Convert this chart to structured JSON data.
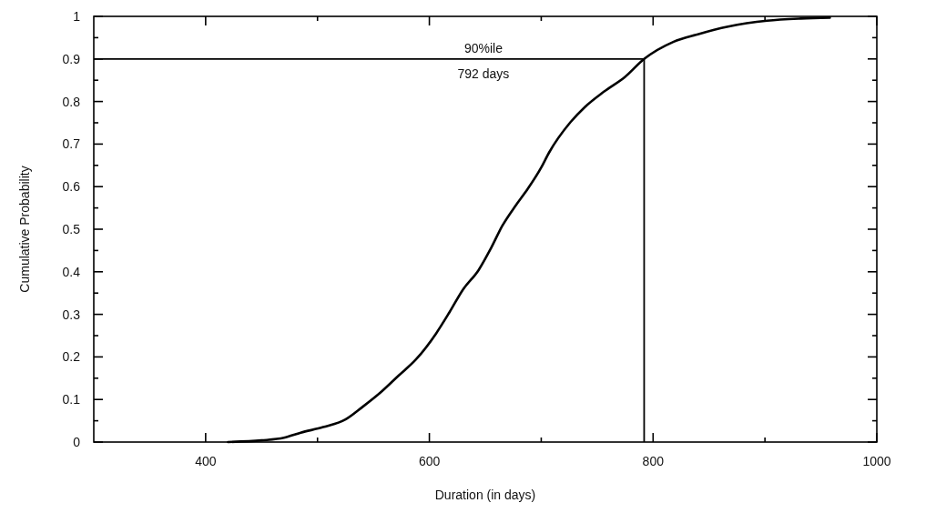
{
  "chart_data": {
    "type": "line",
    "xlabel": "Duration (in days)",
    "ylabel": "Cumulative Probability",
    "xlim": [
      300,
      1000
    ],
    "xticks": [
      400,
      {
        "value": 500,
        "label": null
      },
      600,
      {
        "value": 700,
        "label": null
      },
      800,
      {
        "value": 900,
        "label": null
      },
      1000
    ],
    "ylim": [
      0,
      1
    ],
    "yticks": [
      0,
      {
        "value": 0.05,
        "label": null
      },
      0.1,
      {
        "value": 0.15,
        "label": null
      },
      0.2,
      {
        "value": 0.25,
        "label": null
      },
      0.3,
      {
        "value": 0.35,
        "label": null
      },
      0.4,
      {
        "value": 0.45,
        "label": null
      },
      0.5,
      {
        "value": 0.55,
        "label": null
      },
      0.6,
      {
        "value": 0.65,
        "label": null
      },
      0.7,
      {
        "value": 0.75,
        "label": null
      },
      0.8,
      {
        "value": 0.85,
        "label": null
      },
      0.9,
      {
        "value": 0.95,
        "label": null
      },
      1
    ],
    "x": [
      420,
      450,
      470,
      485,
      505,
      525,
      540,
      557,
      572,
      588,
      606,
      618,
      630,
      644,
      655,
      665,
      677,
      688,
      700,
      707,
      726,
      739,
      756,
      775,
      792,
      818,
      840,
      867,
      902,
      932,
      958
    ],
    "series": [
      {
        "color": "#000000",
        "values": [
          0,
          0.004,
          0.01,
          0.022,
          0.035,
          0.053,
          0.082,
          0.118,
          0.155,
          0.194,
          0.255,
          0.305,
          0.358,
          0.404,
          0.455,
          0.507,
          0.555,
          0.595,
          0.645,
          0.68,
          0.751,
          0.787,
          0.823,
          0.858,
          0.9,
          0.94,
          0.958,
          0.976,
          0.99,
          0.995,
          0.997
        ]
      }
    ],
    "ref_lines": [
      {
        "axis": "y",
        "value": 0.9,
        "label": "90%ile",
        "color": "#000000"
      },
      {
        "axis": "x",
        "value": 792,
        "color": "#000000"
      }
    ],
    "annotations": [
      "792 days"
    ],
    "grid": false,
    "marker": "none",
    "line_style": "solid"
  }
}
